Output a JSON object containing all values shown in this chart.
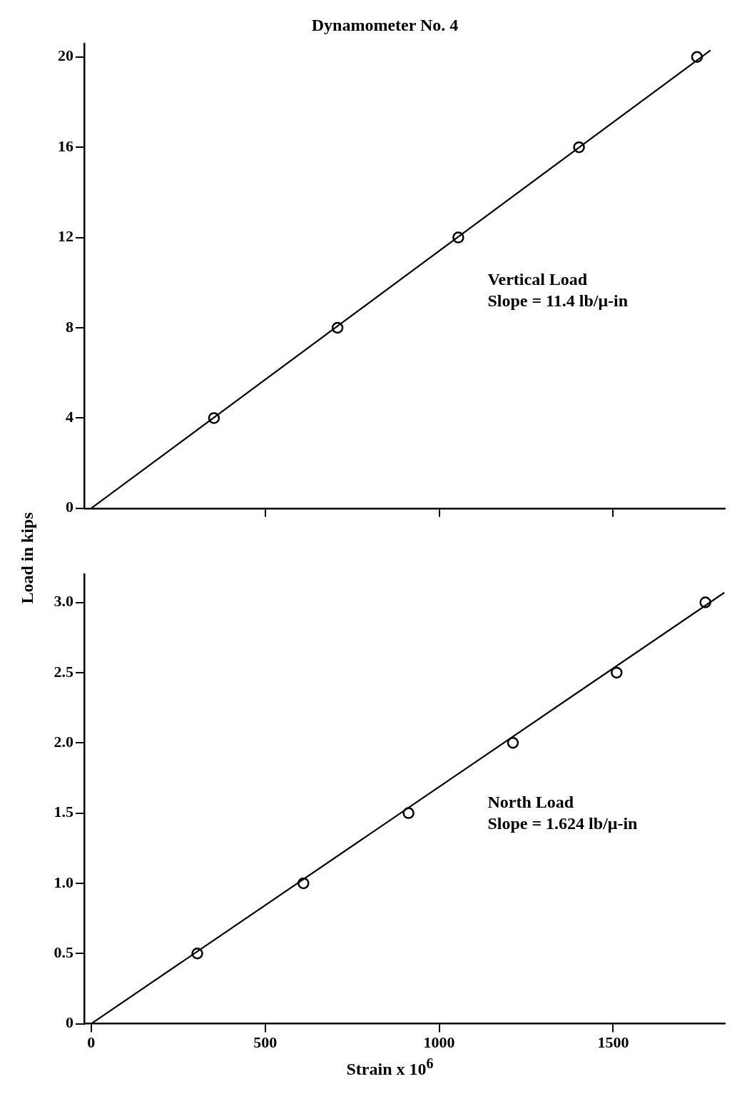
{
  "chart_data": [
    {
      "type": "scatter",
      "title": "Dynamometer No. 4",
      "ylabel": "Load in kips",
      "xlim": [
        -20,
        1820
      ],
      "xticks": [
        {
          "value": 500,
          "label": null
        },
        {
          "value": 1000,
          "label": null
        },
        {
          "value": 1500,
          "label": null
        }
      ],
      "ylim": [
        0,
        20.6
      ],
      "yticks": [
        0,
        4,
        8,
        12,
        16,
        20
      ],
      "tick_labels": "y",
      "grid": false,
      "marker": "circle",
      "annotations": [
        "Vertical Load",
        "Slope = 11.4 lb/μ-in"
      ],
      "series": [
        {
          "type": "scatter",
          "color": "#000000",
          "x": [
            353,
            708,
            1055,
            1402,
            1741
          ],
          "values": [
            4,
            8,
            12,
            16,
            20
          ]
        },
        {
          "type": "line",
          "color": "#000000",
          "marker": "none",
          "x": [
            0,
            1780
          ],
          "values": [
            0,
            20.3
          ]
        }
      ]
    },
    {
      "type": "scatter",
      "xlabel": "Strain x 10$^{6}$",
      "xlim": [
        -20,
        1820
      ],
      "xticks": [
        0,
        500,
        1000,
        1500
      ],
      "ylim": [
        0,
        3.2
      ],
      "yticks": [
        {
          "value": 0,
          "label": "0"
        },
        {
          "value": 0.5,
          "label": "0.5"
        },
        {
          "value": 1,
          "label": "1.0"
        },
        {
          "value": 1.5,
          "label": "1.5"
        },
        {
          "value": 2,
          "label": "2.0"
        },
        {
          "value": 2.5,
          "label": "2.5"
        },
        {
          "value": 3,
          "label": "3.0"
        }
      ],
      "grid": false,
      "marker": "circle",
      "annotations": [
        "North Load",
        "Slope = 1.624 lb/μ-in"
      ],
      "series": [
        {
          "type": "scatter",
          "color": "#000000",
          "x": [
            305,
            610,
            912,
            1212,
            1510,
            1765
          ],
          "values": [
            0.5,
            1,
            1.5,
            2,
            2.5,
            3
          ]
        },
        {
          "type": "line",
          "color": "#000000",
          "marker": "none",
          "x": [
            0,
            1820
          ],
          "values": [
            0,
            3.07
          ]
        }
      ]
    }
  ]
}
